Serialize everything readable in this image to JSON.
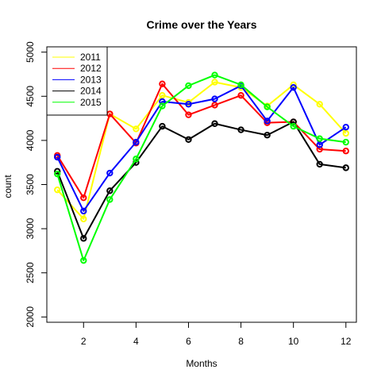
{
  "chart_data": {
    "type": "line",
    "title": "Crime over the Years",
    "xlabel": "Months",
    "ylabel": "count",
    "xlim": [
      0.6,
      12.4
    ],
    "ylim": [
      1940,
      5060
    ],
    "x_ticks": [
      2,
      4,
      6,
      8,
      10,
      12
    ],
    "y_ticks": [
      2000,
      2500,
      3000,
      3500,
      4000,
      4500,
      5000
    ],
    "grid": false,
    "legend_position": "top-left",
    "x": [
      1,
      2,
      3,
      4,
      5,
      6,
      7,
      8,
      9,
      10,
      11,
      12
    ],
    "series": [
      {
        "name": "2011",
        "color": "#ffff00",
        "values": [
          3440,
          3110,
          4300,
          4130,
          4510,
          4430,
          4660,
          4600,
          4390,
          4630,
          4410,
          4080
        ]
      },
      {
        "name": "2012",
        "color": "#ff0000",
        "values": [
          3830,
          3350,
          4300,
          3970,
          4640,
          4290,
          4400,
          4510,
          4200,
          4210,
          3900,
          3880
        ]
      },
      {
        "name": "2013",
        "color": "#0000ff",
        "values": [
          3810,
          3200,
          3630,
          3980,
          4440,
          4410,
          4470,
          4620,
          4220,
          4600,
          3950,
          4150
        ]
      },
      {
        "name": "2014",
        "color": "#000000",
        "values": [
          3650,
          2890,
          3430,
          3750,
          4160,
          4010,
          4190,
          4120,
          4060,
          4210,
          3730,
          3690
        ]
      },
      {
        "name": "2015",
        "color": "#00ff00",
        "values": [
          3620,
          2640,
          3330,
          3790,
          4390,
          4620,
          4740,
          4630,
          4380,
          4160,
          4020,
          3980
        ]
      }
    ]
  }
}
